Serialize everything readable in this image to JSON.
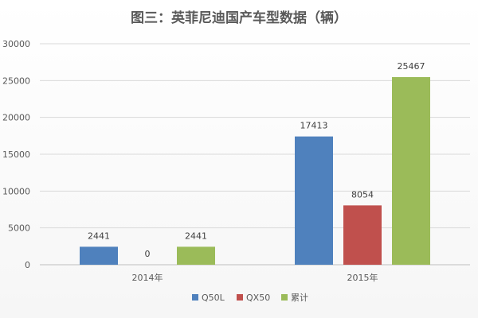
{
  "chart_data": {
    "type": "bar",
    "title": "图三：英菲尼迪国产车型数据（辆）",
    "categories": [
      "2014年",
      "2015年"
    ],
    "series": [
      {
        "name": "Q50L",
        "values": [
          2441,
          17413
        ],
        "color": "#4F81BD"
      },
      {
        "name": "QX50",
        "values": [
          0,
          8054
        ],
        "color": "#C0504D"
      },
      {
        "name": "累计",
        "values": [
          2441,
          25467
        ],
        "color": "#9BBB59"
      }
    ],
    "ylim": [
      0,
      30000
    ],
    "yticks": [
      0,
      5000,
      10000,
      15000,
      20000,
      25000,
      30000
    ],
    "grid": true,
    "legend": "bottom"
  }
}
